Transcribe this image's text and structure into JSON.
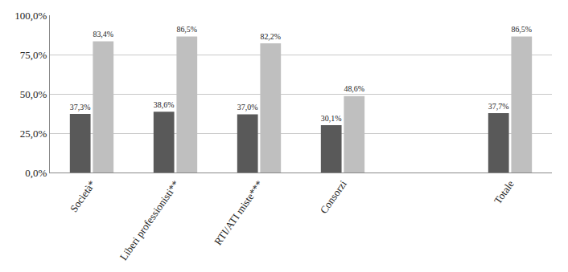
{
  "chart_data": {
    "type": "bar",
    "categories": [
      "Società*",
      "Liberi professionisti**",
      "RTI/ATI miste***",
      "Consorzi",
      null,
      "Totale"
    ],
    "series": [
      {
        "color": "#595959",
        "values": [
          37.3,
          38.6,
          37.0,
          30.1,
          null,
          37.7
        ],
        "value_labels": [
          "37,3%",
          "38,6%",
          "37,0%",
          "30,1%",
          null,
          "37,7%"
        ]
      },
      {
        "color": "#bfbfbf",
        "values": [
          83.4,
          86.5,
          82.2,
          48.6,
          null,
          86.5
        ],
        "value_labels": [
          "83,4%",
          "86,5%",
          "82,2%",
          "48,6%",
          null,
          "86,5%"
        ]
      }
    ],
    "ylim": [
      0,
      100
    ],
    "yticks": [
      {
        "value": 0,
        "label": "0,0%"
      },
      {
        "value": 25,
        "label": "25,0%"
      },
      {
        "value": 50,
        "label": "50,0%"
      },
      {
        "value": 75,
        "label": "75,0%"
      },
      {
        "value": 100,
        "label": "100,0%"
      }
    ],
    "grid": true,
    "data_labels": true
  }
}
